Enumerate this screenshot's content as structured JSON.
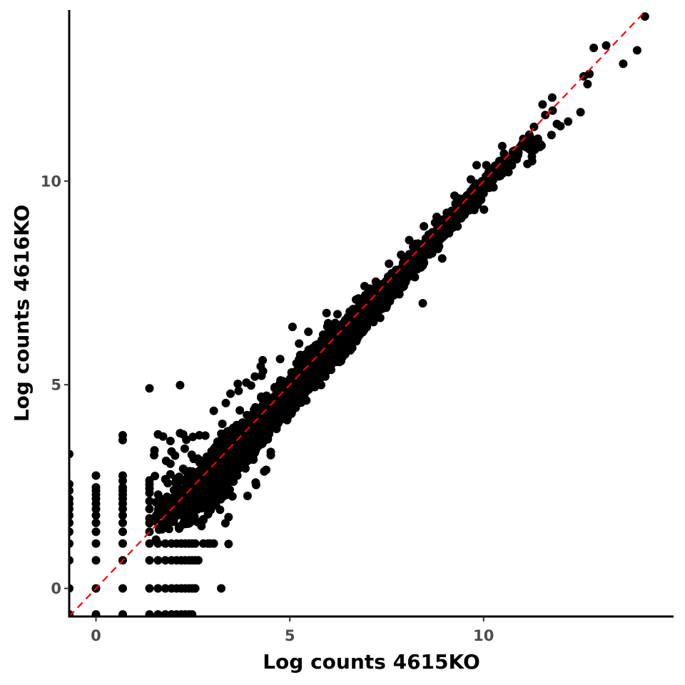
{
  "chart_data": {
    "type": "scatter",
    "title": "",
    "xlabel": "Log counts 4615KO",
    "ylabel": "Log counts 4616KO",
    "xlim": [
      -0.69,
      14.9
    ],
    "ylim": [
      -0.69,
      14.2
    ],
    "x_ticks": [
      {
        "value": 0,
        "label": "0"
      },
      {
        "value": 5,
        "label": "5"
      },
      {
        "value": 10,
        "label": "10"
      }
    ],
    "y_ticks": [
      {
        "value": 0,
        "label": "0"
      },
      {
        "value": 5,
        "label": "5"
      },
      {
        "value": 10,
        "label": "10"
      }
    ],
    "grid": false,
    "reference_line": {
      "type": "identity",
      "slope": 1,
      "intercept": 0,
      "style": "dashed",
      "color": "#ff0000"
    },
    "point_color": "#000000",
    "series": [
      {
        "points": [
          [
            14.16,
            14.04
          ],
          [
            12.84,
            13.27
          ],
          [
            13.16,
            13.33
          ],
          [
            13.96,
            13.21
          ],
          [
            13.6,
            12.88
          ],
          [
            12.73,
            12.63
          ],
          [
            12.58,
            12.57
          ],
          [
            12.68,
            12.38
          ],
          [
            11.78,
            11.73
          ],
          [
            11.59,
            11.62
          ],
          [
            11.89,
            11.4
          ],
          [
            12.5,
            11.69
          ],
          [
            11.3,
            11.33
          ],
          [
            11.4,
            11.04
          ],
          [
            11.18,
            11.14
          ],
          [
            11.47,
            10.9
          ],
          [
            12.18,
            11.46
          ],
          [
            11.98,
            11.35
          ],
          [
            11.75,
            11.13
          ],
          [
            11.25,
            10.49
          ],
          [
            11.13,
            10.42
          ],
          [
            10.58,
            10.4
          ],
          [
            10.45,
            10.5
          ],
          [
            10.9,
            10.79
          ],
          [
            11.0,
            10.92
          ],
          [
            9.82,
            10.39
          ],
          [
            10.64,
            10.22
          ],
          [
            10.35,
            10.31
          ],
          [
            10.01,
            9.3
          ],
          [
            8.93,
            8.1
          ],
          [
            8.43,
            7.0
          ],
          [
            7.22,
            7.53
          ],
          [
            7.09,
            7.28
          ],
          [
            6.99,
            6.77
          ],
          [
            7.03,
            6.89
          ],
          [
            5.99,
            6.51
          ],
          [
            5.86,
            6.23
          ],
          [
            5.24,
            6.01
          ],
          [
            4.75,
            5.63
          ],
          [
            4.3,
            5.6
          ],
          [
            4.31,
            5.33
          ],
          [
            4.1,
            5.2
          ],
          [
            4.25,
            5.45
          ],
          [
            4.0,
            4.98
          ],
          [
            2.17,
            4.99
          ],
          [
            1.38,
            4.91
          ],
          [
            3.88,
            5.05
          ],
          [
            3.66,
            5.02
          ],
          [
            3.47,
            4.78
          ],
          [
            3.68,
            4.85
          ],
          [
            3.35,
            4.55
          ],
          [
            3.04,
            4.36
          ],
          [
            5.33,
            5.52
          ],
          [
            4.91,
            4.64
          ],
          [
            4.72,
            4.41
          ],
          [
            4.66,
            3.98
          ],
          [
            4.43,
            3.67
          ],
          [
            4.37,
            3.74
          ],
          [
            4.51,
            3.27
          ],
          [
            4.51,
            3.35
          ],
          [
            4.21,
            3.6
          ],
          [
            4.39,
            2.91
          ],
          [
            4.34,
            2.87
          ],
          [
            4.12,
            2.6
          ],
          [
            4.13,
            2.54
          ],
          [
            3.91,
            2.27
          ],
          [
            3.52,
            2.26
          ],
          [
            3.09,
            2.04
          ],
          [
            3.42,
            1.75
          ],
          [
            3.34,
            1.6
          ],
          [
            3.42,
            1.09
          ],
          [
            6.04,
            5.97
          ],
          [
            7.04,
            7.29
          ],
          [
            7.06,
            7.36
          ],
          [
            6.77,
            7.12
          ],
          [
            5.95,
            6.76
          ],
          [
            5.97,
            6.43
          ],
          [
            5.07,
            6.42
          ],
          [
            5.48,
            6.3
          ],
          [
            6.23,
            6.73
          ],
          [
            6.67,
            6.53
          ],
          [
            6.8,
            6.77
          ],
          [
            6.53,
            6.51
          ],
          [
            6.28,
            6.14
          ],
          [
            6.53,
            6.06
          ],
          [
            6.0,
            5.81
          ],
          [
            6.32,
            5.58
          ],
          [
            5.56,
            5.66
          ],
          [
            5.39,
            5.58
          ],
          [
            5.93,
            5.63
          ],
          [
            5.48,
            4.95
          ],
          [
            5.23,
            4.55
          ],
          [
            6.27,
            5.69
          ],
          [
            6.43,
            5.75
          ],
          [
            4.61,
            4.92
          ],
          [
            4.27,
            5.22
          ],
          [
            4.4,
            4.73
          ],
          [
            4.65,
            4.69
          ],
          [
            4.33,
            4.22
          ],
          [
            3.98,
            4.1
          ],
          [
            3.71,
            4.37
          ],
          [
            3.26,
            4.04
          ],
          [
            3.63,
            4.0
          ],
          [
            3.39,
            3.85
          ],
          [
            3.47,
            3.7
          ],
          [
            2.82,
            3.75
          ],
          [
            2.67,
            3.76
          ],
          [
            2.5,
            3.72
          ],
          [
            2.25,
            3.78
          ],
          [
            1.73,
            3.73
          ],
          [
            1.92,
            3.62
          ],
          [
            1.95,
            3.36
          ],
          [
            2.33,
            3.65
          ],
          [
            2.29,
            3.43
          ],
          [
            2.47,
            3.28
          ],
          [
            2.67,
            3.15
          ],
          [
            2.04,
            3.26
          ],
          [
            1.51,
            3.39
          ],
          [
            1.5,
            3.27
          ],
          [
            1.81,
            3.13
          ],
          [
            1.92,
            3.06
          ],
          [
            1.92,
            2.8
          ],
          [
            1.79,
            2.68
          ],
          [
            1.52,
            2.76
          ],
          [
            1.38,
            2.65
          ],
          [
            1.38,
            2.55
          ],
          [
            1.38,
            2.45
          ],
          [
            1.38,
            2.34
          ],
          [
            1.38,
            2.14
          ],
          [
            1.38,
            1.95
          ],
          [
            1.38,
            1.72
          ],
          [
            1.38,
            1.6
          ],
          [
            1.38,
            1.39
          ],
          [
            1.38,
            1.1
          ],
          [
            1.6,
            1.1
          ],
          [
            1.79,
            1.1
          ],
          [
            1.95,
            1.1
          ],
          [
            2.08,
            1.1
          ],
          [
            2.2,
            1.1
          ],
          [
            2.3,
            1.1
          ],
          [
            2.4,
            1.1
          ],
          [
            2.48,
            1.1
          ],
          [
            2.56,
            1.1
          ],
          [
            2.77,
            1.1
          ],
          [
            2.89,
            1.1
          ],
          [
            2.94,
            1.1
          ],
          [
            3.04,
            1.1
          ],
          [
            1.38,
            0.69
          ],
          [
            1.6,
            0.69
          ],
          [
            1.79,
            0.69
          ],
          [
            1.95,
            0.69
          ],
          [
            2.08,
            0.69
          ],
          [
            2.2,
            0.69
          ],
          [
            2.3,
            0.69
          ],
          [
            2.4,
            0.69
          ],
          [
            2.48,
            0.69
          ],
          [
            2.56,
            0.69
          ],
          [
            2.64,
            0.69
          ],
          [
            1.38,
            0.0
          ],
          [
            1.6,
            0.0
          ],
          [
            1.79,
            0.0
          ],
          [
            1.95,
            0.0
          ],
          [
            2.08,
            0.0
          ],
          [
            2.2,
            0.0
          ],
          [
            2.3,
            0.0
          ],
          [
            2.4,
            0.0
          ],
          [
            2.48,
            0.0
          ],
          [
            2.56,
            0.0
          ],
          [
            3.23,
            0.0
          ],
          [
            1.38,
            -0.64
          ],
          [
            1.6,
            -0.64
          ],
          [
            1.79,
            -0.64
          ],
          [
            1.95,
            -0.64
          ],
          [
            2.08,
            -0.64
          ],
          [
            2.2,
            -0.64
          ],
          [
            2.3,
            -0.64
          ],
          [
            2.4,
            -0.64
          ],
          [
            2.48,
            -0.64
          ],
          [
            0.69,
            -0.64
          ],
          [
            0.0,
            -0.64
          ],
          [
            -0.69,
            -0.64
          ],
          [
            -0.69,
            0.0
          ],
          [
            -0.69,
            0.69
          ],
          [
            -0.69,
            1.1
          ],
          [
            -0.69,
            1.39
          ],
          [
            -0.69,
            1.61
          ],
          [
            -0.69,
            1.79
          ],
          [
            -0.69,
            1.95
          ],
          [
            -0.69,
            2.08
          ],
          [
            -0.69,
            2.2
          ],
          [
            -0.69,
            2.4
          ],
          [
            -0.69,
            2.56
          ],
          [
            -0.69,
            3.3
          ],
          [
            0.0,
            0.0
          ],
          [
            0.0,
            0.69
          ],
          [
            0.0,
            1.1
          ],
          [
            0.0,
            1.39
          ],
          [
            0.0,
            1.61
          ],
          [
            0.0,
            1.79
          ],
          [
            0.0,
            1.95
          ],
          [
            0.0,
            2.08
          ],
          [
            0.0,
            2.2
          ],
          [
            0.0,
            2.3
          ],
          [
            0.0,
            2.4
          ],
          [
            0.0,
            2.48
          ],
          [
            0.0,
            2.77
          ],
          [
            0.69,
            0.0
          ],
          [
            0.69,
            0.69
          ],
          [
            0.69,
            1.1
          ],
          [
            0.69,
            1.39
          ],
          [
            0.69,
            1.61
          ],
          [
            0.69,
            1.79
          ],
          [
            0.69,
            1.95
          ],
          [
            0.69,
            2.08
          ],
          [
            0.69,
            2.2
          ],
          [
            0.69,
            2.3
          ],
          [
            0.69,
            2.4
          ],
          [
            0.69,
            2.48
          ],
          [
            0.69,
            2.64
          ],
          [
            0.69,
            2.77
          ],
          [
            0.69,
            3.64
          ],
          [
            0.69,
            3.76
          ],
          [
            1.6,
            3.78
          ],
          [
            2.17,
            3.81
          ],
          [
            2.52,
            3.18
          ],
          [
            2.86,
            3.07
          ],
          [
            3.1,
            2.97
          ],
          [
            3.16,
            2.47
          ],
          [
            3.2,
            1.93
          ],
          [
            3.52,
            2.63
          ],
          [
            3.81,
            2.99
          ],
          [
            3.82,
            3.15
          ],
          [
            2.41,
            1.6
          ],
          [
            2.72,
            1.53
          ],
          [
            8.08,
            8.55
          ],
          [
            8.46,
            8.89
          ],
          [
            9.25,
            9.64
          ],
          [
            9.67,
            10.04
          ],
          [
            10.07,
            10.39
          ],
          [
            10.48,
            10.86
          ],
          [
            11.52,
            11.88
          ],
          [
            11.77,
            12.05
          ],
          [
            9.05,
            9.22
          ],
          [
            9.38,
            9.52
          ],
          [
            9.75,
            9.63
          ],
          [
            9.93,
            9.9
          ],
          [
            10.14,
            9.95
          ],
          [
            10.38,
            10.21
          ],
          [
            8.69,
            8.47
          ],
          [
            8.34,
            8.16
          ],
          [
            7.79,
            7.63
          ],
          [
            7.44,
            7.37
          ],
          [
            7.56,
            7.97
          ],
          [
            7.87,
            8.19
          ],
          [
            8.25,
            8.46
          ],
          [
            6.93,
            7.42
          ],
          [
            7.31,
            7.23
          ],
          [
            6.14,
            6.47
          ],
          [
            6.71,
            7.09
          ],
          [
            7.4,
            7.31
          ],
          [
            7.79,
            7.8
          ],
          [
            5.8,
            5.43
          ],
          [
            6.5,
            6.07
          ],
          [
            8.79,
            9.12
          ],
          [
            9.43,
            9.18
          ],
          [
            8.85,
            8.4
          ],
          [
            5.27,
            5.73
          ],
          [
            2.64,
            2.76
          ],
          [
            2.99,
            3.22
          ],
          [
            3.21,
            3.39
          ]
        ]
      }
    ],
    "dense_band": [
      {
        "x": 1.5,
        "lo": 1.0,
        "hi": 2.45,
        "n": 50
      },
      {
        "x": 2.0,
        "lo": 1.1,
        "hi": 2.95,
        "n": 110
      },
      {
        "x": 2.5,
        "lo": 1.35,
        "hi": 3.3,
        "n": 190
      },
      {
        "x": 3.0,
        "lo": 1.7,
        "hi": 3.75,
        "n": 240
      },
      {
        "x": 3.5,
        "lo": 2.2,
        "hi": 4.15,
        "n": 250
      },
      {
        "x": 4.0,
        "lo": 2.85,
        "hi": 4.55,
        "n": 240
      },
      {
        "x": 4.5,
        "lo": 3.45,
        "hi": 5.05,
        "n": 230
      },
      {
        "x": 5.0,
        "lo": 4.05,
        "hi": 5.55,
        "n": 220
      },
      {
        "x": 5.5,
        "lo": 4.6,
        "hi": 6.0,
        "n": 210
      },
      {
        "x": 6.0,
        "lo": 5.1,
        "hi": 6.45,
        "n": 200
      },
      {
        "x": 6.5,
        "lo": 5.65,
        "hi": 6.9,
        "n": 190
      },
      {
        "x": 7.0,
        "lo": 6.2,
        "hi": 7.35,
        "n": 170
      },
      {
        "x": 7.5,
        "lo": 6.75,
        "hi": 7.8,
        "n": 150
      },
      {
        "x": 8.0,
        "lo": 7.3,
        "hi": 8.3,
        "n": 130
      },
      {
        "x": 8.5,
        "lo": 7.85,
        "hi": 8.8,
        "n": 110
      },
      {
        "x": 9.0,
        "lo": 8.4,
        "hi": 9.3,
        "n": 90
      },
      {
        "x": 9.5,
        "lo": 8.95,
        "hi": 9.75,
        "n": 70
      },
      {
        "x": 10.0,
        "lo": 9.5,
        "hi": 10.25,
        "n": 50
      },
      {
        "x": 10.5,
        "lo": 10.0,
        "hi": 10.7,
        "n": 35
      },
      {
        "x": 11.0,
        "lo": 10.55,
        "hi": 11.1,
        "n": 20
      }
    ]
  }
}
